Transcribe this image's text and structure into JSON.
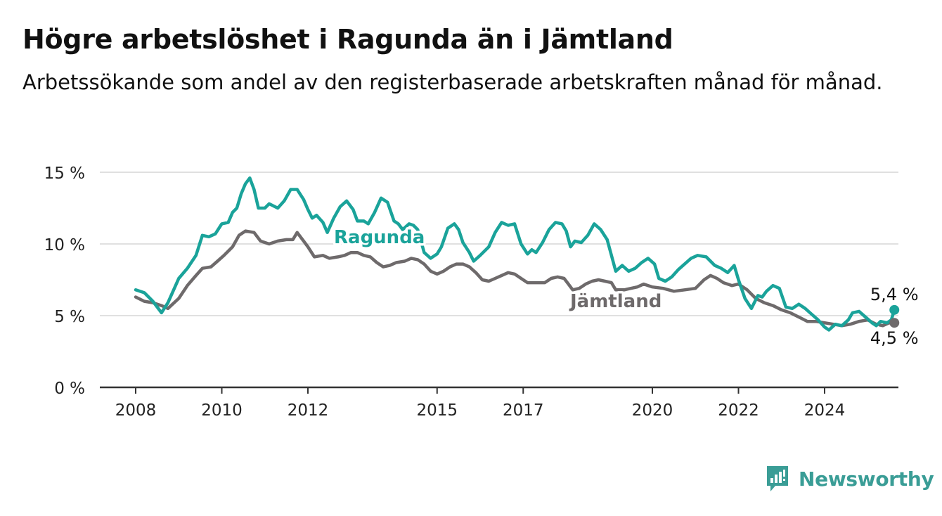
{
  "title": "Högre arbetslöshet i Ragunda än i Jämtland",
  "subtitle": "Arbetssökande som andel av den registerbaserade arbetskraften månad för månad.",
  "brand": {
    "name": "Newsworthy",
    "icon": "newsworthy-logo-icon",
    "color": "#3a9d96"
  },
  "chart_data": {
    "type": "line",
    "xlabel": "",
    "ylabel": "",
    "ylim": [
      0,
      15
    ],
    "xlim": [
      2008,
      2025.8
    ],
    "grid": true,
    "yticks": [
      {
        "value": 0,
        "label": "0 %"
      },
      {
        "value": 5,
        "label": "5 %"
      },
      {
        "value": 10,
        "label": "10 %"
      },
      {
        "value": 15,
        "label": "15 %"
      }
    ],
    "xticks": [
      {
        "value": 2008,
        "label": "2008"
      },
      {
        "value": 2010,
        "label": "2010"
      },
      {
        "value": 2012,
        "label": "2012"
      },
      {
        "value": 2015,
        "label": "2015"
      },
      {
        "value": 2017,
        "label": "2017"
      },
      {
        "value": 2020,
        "label": "2020"
      },
      {
        "value": 2022,
        "label": "2022"
      },
      {
        "value": 2024,
        "label": "2024"
      }
    ],
    "series": [
      {
        "name": "Ragunda",
        "color": "#1aa39a",
        "end_label": "5,4 %",
        "points": [
          [
            2008.0,
            6.8
          ],
          [
            2008.2,
            6.6
          ],
          [
            2008.4,
            6.0
          ],
          [
            2008.6,
            5.2
          ],
          [
            2008.75,
            5.9
          ],
          [
            2009.0,
            7.6
          ],
          [
            2009.2,
            8.3
          ],
          [
            2009.4,
            9.2
          ],
          [
            2009.55,
            10.6
          ],
          [
            2009.7,
            10.5
          ],
          [
            2009.85,
            10.7
          ],
          [
            2010.0,
            11.4
          ],
          [
            2010.15,
            11.5
          ],
          [
            2010.25,
            12.2
          ],
          [
            2010.35,
            12.5
          ],
          [
            2010.45,
            13.5
          ],
          [
            2010.55,
            14.2
          ],
          [
            2010.65,
            14.6
          ],
          [
            2010.75,
            13.8
          ],
          [
            2010.85,
            12.5
          ],
          [
            2011.0,
            12.5
          ],
          [
            2011.1,
            12.8
          ],
          [
            2011.3,
            12.5
          ],
          [
            2011.45,
            13.0
          ],
          [
            2011.6,
            13.8
          ],
          [
            2011.75,
            13.8
          ],
          [
            2011.9,
            13.1
          ],
          [
            2012.0,
            12.4
          ],
          [
            2012.1,
            11.8
          ],
          [
            2012.2,
            12.0
          ],
          [
            2012.35,
            11.5
          ],
          [
            2012.45,
            10.8
          ],
          [
            2012.6,
            11.8
          ],
          [
            2012.75,
            12.6
          ],
          [
            2012.9,
            13.0
          ],
          [
            2013.05,
            12.4
          ],
          [
            2013.15,
            11.6
          ],
          [
            2013.3,
            11.6
          ],
          [
            2013.4,
            11.4
          ],
          [
            2013.55,
            12.2
          ],
          [
            2013.7,
            13.2
          ],
          [
            2013.85,
            12.9
          ],
          [
            2014.0,
            11.6
          ],
          [
            2014.1,
            11.4
          ],
          [
            2014.2,
            11.0
          ],
          [
            2014.35,
            11.4
          ],
          [
            2014.45,
            11.3
          ],
          [
            2014.55,
            11.0
          ],
          [
            2014.7,
            9.4
          ],
          [
            2014.85,
            9.0
          ],
          [
            2015.0,
            9.3
          ],
          [
            2015.1,
            9.8
          ],
          [
            2015.25,
            11.1
          ],
          [
            2015.4,
            11.4
          ],
          [
            2015.5,
            11.0
          ],
          [
            2015.6,
            10.1
          ],
          [
            2015.75,
            9.4
          ],
          [
            2015.85,
            8.8
          ],
          [
            2016.0,
            9.2
          ],
          [
            2016.2,
            9.8
          ],
          [
            2016.35,
            10.8
          ],
          [
            2016.5,
            11.5
          ],
          [
            2016.65,
            11.3
          ],
          [
            2016.8,
            11.4
          ],
          [
            2016.95,
            10.0
          ],
          [
            2017.1,
            9.3
          ],
          [
            2017.2,
            9.6
          ],
          [
            2017.3,
            9.4
          ],
          [
            2017.45,
            10.1
          ],
          [
            2017.6,
            11.0
          ],
          [
            2017.75,
            11.5
          ],
          [
            2017.9,
            11.4
          ],
          [
            2018.0,
            10.9
          ],
          [
            2018.1,
            9.8
          ],
          [
            2018.2,
            10.2
          ],
          [
            2018.35,
            10.1
          ],
          [
            2018.5,
            10.6
          ],
          [
            2018.65,
            11.4
          ],
          [
            2018.8,
            11.0
          ],
          [
            2018.95,
            10.3
          ],
          [
            2019.05,
            9.2
          ],
          [
            2019.15,
            8.1
          ],
          [
            2019.3,
            8.5
          ],
          [
            2019.45,
            8.1
          ],
          [
            2019.6,
            8.3
          ],
          [
            2019.75,
            8.7
          ],
          [
            2019.9,
            9.0
          ],
          [
            2020.05,
            8.6
          ],
          [
            2020.15,
            7.6
          ],
          [
            2020.3,
            7.4
          ],
          [
            2020.45,
            7.7
          ],
          [
            2020.6,
            8.2
          ],
          [
            2020.75,
            8.6
          ],
          [
            2020.9,
            9.0
          ],
          [
            2021.05,
            9.2
          ],
          [
            2021.25,
            9.1
          ],
          [
            2021.45,
            8.5
          ],
          [
            2021.6,
            8.3
          ],
          [
            2021.75,
            8.0
          ],
          [
            2021.9,
            8.5
          ],
          [
            2022.0,
            7.5
          ],
          [
            2022.15,
            6.2
          ],
          [
            2022.3,
            5.5
          ],
          [
            2022.45,
            6.4
          ],
          [
            2022.55,
            6.3
          ],
          [
            2022.65,
            6.7
          ],
          [
            2022.8,
            7.1
          ],
          [
            2022.95,
            6.9
          ],
          [
            2023.1,
            5.6
          ],
          [
            2023.25,
            5.5
          ],
          [
            2023.4,
            5.8
          ],
          [
            2023.55,
            5.5
          ],
          [
            2023.7,
            5.1
          ],
          [
            2023.85,
            4.7
          ],
          [
            2024.0,
            4.2
          ],
          [
            2024.1,
            4.0
          ],
          [
            2024.25,
            4.4
          ],
          [
            2024.4,
            4.3
          ],
          [
            2024.55,
            4.7
          ],
          [
            2024.65,
            5.2
          ],
          [
            2024.8,
            5.3
          ],
          [
            2024.95,
            4.9
          ],
          [
            2025.1,
            4.5
          ],
          [
            2025.2,
            4.3
          ],
          [
            2025.3,
            4.6
          ],
          [
            2025.45,
            4.5
          ],
          [
            2025.55,
            4.7
          ],
          [
            2025.62,
            5.4
          ]
        ]
      },
      {
        "name": "Jämtland",
        "color": "#6e6a6b",
        "end_label": "4,5 %",
        "points": [
          [
            2008.0,
            6.3
          ],
          [
            2008.2,
            6.0
          ],
          [
            2008.4,
            5.9
          ],
          [
            2008.6,
            5.7
          ],
          [
            2008.75,
            5.5
          ],
          [
            2009.0,
            6.2
          ],
          [
            2009.2,
            7.1
          ],
          [
            2009.4,
            7.8
          ],
          [
            2009.55,
            8.3
          ],
          [
            2009.75,
            8.4
          ],
          [
            2009.9,
            8.8
          ],
          [
            2010.05,
            9.2
          ],
          [
            2010.25,
            9.8
          ],
          [
            2010.4,
            10.6
          ],
          [
            2010.55,
            10.9
          ],
          [
            2010.75,
            10.8
          ],
          [
            2010.9,
            10.2
          ],
          [
            2011.1,
            10.0
          ],
          [
            2011.3,
            10.2
          ],
          [
            2011.5,
            10.3
          ],
          [
            2011.65,
            10.3
          ],
          [
            2011.75,
            10.8
          ],
          [
            2011.9,
            10.2
          ],
          [
            2012.0,
            9.8
          ],
          [
            2012.15,
            9.1
          ],
          [
            2012.35,
            9.2
          ],
          [
            2012.5,
            9.0
          ],
          [
            2012.7,
            9.1
          ],
          [
            2012.85,
            9.2
          ],
          [
            2013.0,
            9.4
          ],
          [
            2013.15,
            9.4
          ],
          [
            2013.3,
            9.2
          ],
          [
            2013.45,
            9.1
          ],
          [
            2013.6,
            8.7
          ],
          [
            2013.75,
            8.4
          ],
          [
            2013.9,
            8.5
          ],
          [
            2014.05,
            8.7
          ],
          [
            2014.25,
            8.8
          ],
          [
            2014.4,
            9.0
          ],
          [
            2014.55,
            8.9
          ],
          [
            2014.7,
            8.6
          ],
          [
            2014.85,
            8.1
          ],
          [
            2015.0,
            7.9
          ],
          [
            2015.15,
            8.1
          ],
          [
            2015.3,
            8.4
          ],
          [
            2015.45,
            8.6
          ],
          [
            2015.6,
            8.6
          ],
          [
            2015.75,
            8.4
          ],
          [
            2015.9,
            8.0
          ],
          [
            2016.05,
            7.5
          ],
          [
            2016.2,
            7.4
          ],
          [
            2016.35,
            7.6
          ],
          [
            2016.5,
            7.8
          ],
          [
            2016.65,
            8.0
          ],
          [
            2016.8,
            7.9
          ],
          [
            2016.95,
            7.6
          ],
          [
            2017.1,
            7.3
          ],
          [
            2017.3,
            7.3
          ],
          [
            2017.5,
            7.3
          ],
          [
            2017.65,
            7.6
          ],
          [
            2017.8,
            7.7
          ],
          [
            2017.95,
            7.6
          ],
          [
            2018.05,
            7.2
          ],
          [
            2018.15,
            6.8
          ],
          [
            2018.3,
            6.9
          ],
          [
            2018.45,
            7.2
          ],
          [
            2018.6,
            7.4
          ],
          [
            2018.75,
            7.5
          ],
          [
            2018.9,
            7.4
          ],
          [
            2019.05,
            7.3
          ],
          [
            2019.15,
            6.8
          ],
          [
            2019.35,
            6.8
          ],
          [
            2019.5,
            6.9
          ],
          [
            2019.65,
            7.0
          ],
          [
            2019.8,
            7.2
          ],
          [
            2020.0,
            7.0
          ],
          [
            2020.25,
            6.9
          ],
          [
            2020.5,
            6.7
          ],
          [
            2020.75,
            6.8
          ],
          [
            2021.0,
            6.9
          ],
          [
            2021.2,
            7.5
          ],
          [
            2021.35,
            7.8
          ],
          [
            2021.5,
            7.6
          ],
          [
            2021.65,
            7.3
          ],
          [
            2021.85,
            7.1
          ],
          [
            2022.0,
            7.2
          ],
          [
            2022.2,
            6.8
          ],
          [
            2022.4,
            6.2
          ],
          [
            2022.6,
            5.9
          ],
          [
            2022.8,
            5.7
          ],
          [
            2023.0,
            5.4
          ],
          [
            2023.2,
            5.2
          ],
          [
            2023.4,
            4.9
          ],
          [
            2023.6,
            4.6
          ],
          [
            2023.8,
            4.6
          ],
          [
            2024.0,
            4.5
          ],
          [
            2024.2,
            4.4
          ],
          [
            2024.4,
            4.3
          ],
          [
            2024.6,
            4.4
          ],
          [
            2024.8,
            4.6
          ],
          [
            2025.0,
            4.7
          ],
          [
            2025.2,
            4.4
          ],
          [
            2025.35,
            4.3
          ],
          [
            2025.5,
            4.5
          ],
          [
            2025.62,
            4.5
          ]
        ]
      }
    ]
  }
}
